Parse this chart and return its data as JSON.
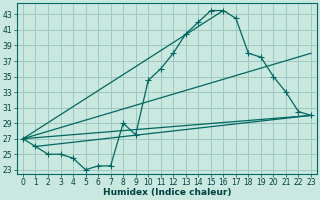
{
  "xlabel": "Humidex (Indice chaleur)",
  "bg_color": "#c8e8e0",
  "grid_color": "#a0c8c0",
  "line_color": "#006860",
  "xlim": [
    -0.5,
    23.5
  ],
  "ylim": [
    22.5,
    44.5
  ],
  "yticks": [
    23,
    25,
    27,
    29,
    31,
    33,
    35,
    37,
    39,
    41,
    43
  ],
  "xticks": [
    0,
    1,
    2,
    3,
    4,
    5,
    6,
    7,
    8,
    9,
    10,
    11,
    12,
    13,
    14,
    15,
    16,
    17,
    18,
    19,
    20,
    21,
    22,
    23
  ],
  "curve_x": [
    0,
    1,
    2,
    3,
    4,
    5,
    6,
    7,
    8,
    9,
    10,
    11,
    12,
    13,
    14,
    15,
    16,
    17,
    18,
    19,
    20,
    21,
    22,
    23
  ],
  "curve_y": [
    27,
    26,
    25,
    25,
    24.5,
    23,
    23.5,
    23.5,
    29,
    27.5,
    34.5,
    36,
    38,
    40.5,
    42,
    43.5,
    43.5,
    42.5,
    38,
    37.5,
    35,
    33,
    30.5,
    30
  ],
  "line1_x": [
    0,
    16
  ],
  "line1_y": [
    27,
    43.5
  ],
  "line2_x": [
    0,
    23
  ],
  "line2_y": [
    27,
    38
  ],
  "line3_x": [
    0,
    23
  ],
  "line3_y": [
    27,
    30
  ],
  "line4_x": [
    1,
    23
  ],
  "line4_y": [
    26,
    30
  ],
  "marker": "+",
  "markersize": 4,
  "linewidth": 0.9,
  "font_color": "#004040",
  "tick_fontsize": 5.5,
  "label_fontsize": 6.5
}
